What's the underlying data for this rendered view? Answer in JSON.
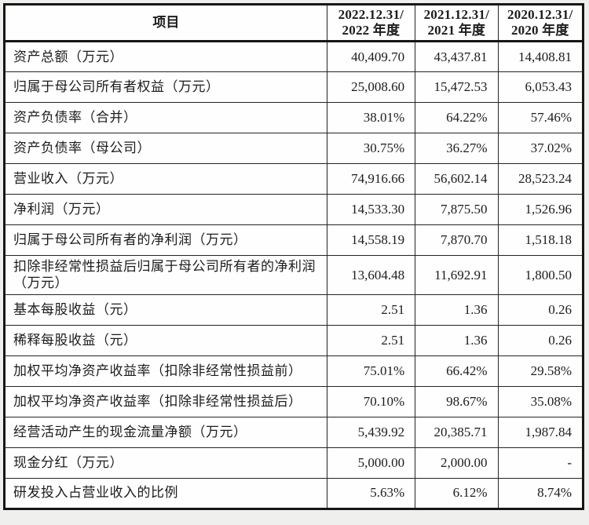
{
  "table": {
    "header": {
      "item_label": "项目",
      "periods": [
        {
          "line1": "2022.12.31/",
          "line2": "2022 年度"
        },
        {
          "line1": "2021.12.31/",
          "line2": "2021 年度"
        },
        {
          "line1": "2020.12.31/",
          "line2": "2020 年度"
        }
      ]
    },
    "rows": [
      {
        "label": "资产总额（万元）",
        "values": [
          "40,409.70",
          "43,437.81",
          "14,408.81"
        ]
      },
      {
        "label": "归属于母公司所有者权益（万元）",
        "values": [
          "25,008.60",
          "15,472.53",
          "6,053.43"
        ]
      },
      {
        "label": "资产负债率（合并）",
        "values": [
          "38.01%",
          "64.22%",
          "57.46%"
        ]
      },
      {
        "label": "资产负债率（母公司）",
        "values": [
          "30.75%",
          "36.27%",
          "37.02%"
        ]
      },
      {
        "label": "营业收入（万元）",
        "values": [
          "74,916.66",
          "56,602.14",
          "28,523.24"
        ]
      },
      {
        "label": "净利润（万元）",
        "values": [
          "14,533.30",
          "7,875.50",
          "1,526.96"
        ]
      },
      {
        "label": "归属于母公司所有者的净利润（万元）",
        "values": [
          "14,558.19",
          "7,870.70",
          "1,518.18"
        ]
      },
      {
        "label": "扣除非经常性损益后归属于母公司所有者的净利润（万元）",
        "values": [
          "13,604.48",
          "11,692.91",
          "1,800.50"
        ]
      },
      {
        "label": "基本每股收益（元）",
        "values": [
          "2.51",
          "1.36",
          "0.26"
        ]
      },
      {
        "label": "稀释每股收益（元）",
        "values": [
          "2.51",
          "1.36",
          "0.26"
        ]
      },
      {
        "label": "加权平均净资产收益率（扣除非经常性损益前）",
        "values": [
          "75.01%",
          "66.42%",
          "29.58%"
        ]
      },
      {
        "label": "加权平均净资产收益率（扣除非经常性损益后）",
        "values": [
          "70.10%",
          "98.67%",
          "35.08%"
        ]
      },
      {
        "label": "经营活动产生的现金流量净额（万元）",
        "values": [
          "5,439.92",
          "20,385.71",
          "1,987.84"
        ]
      },
      {
        "label": "现金分红（万元）",
        "values": [
          "5,000.00",
          "2,000.00",
          "-"
        ]
      },
      {
        "label": "研发投入占营业收入的比例",
        "values": [
          "5.63%",
          "6.12%",
          "8.74%"
        ]
      }
    ]
  },
  "colors": {
    "border": "#161616",
    "text": "#1c1c1c",
    "cell_background": "#fefefe",
    "page_background": "#efefed"
  }
}
